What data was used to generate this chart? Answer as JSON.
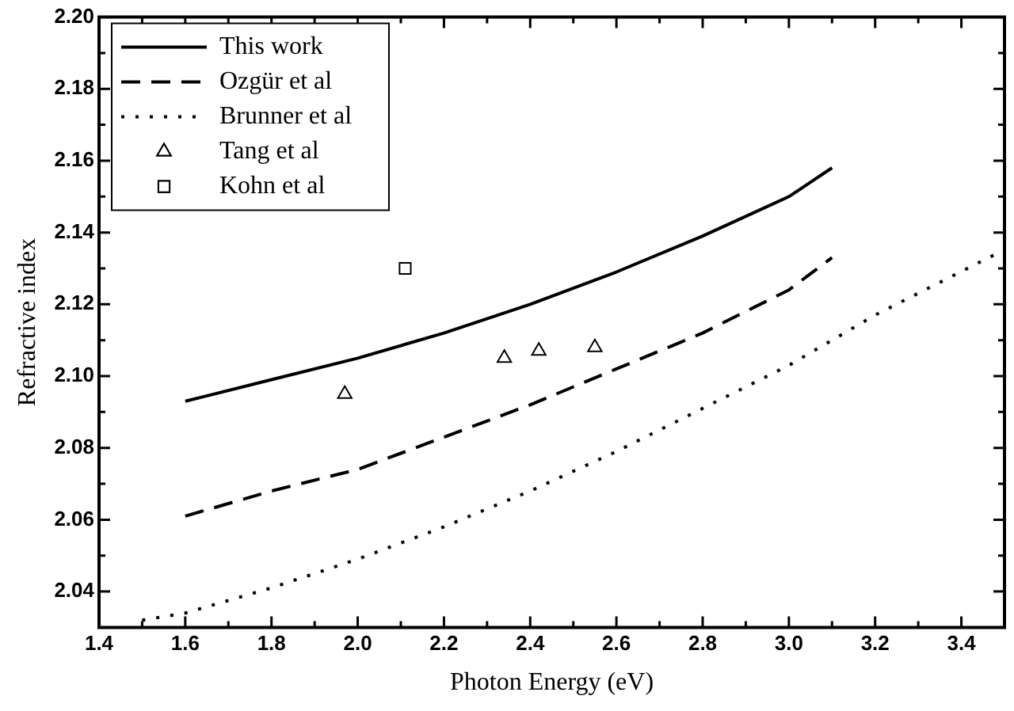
{
  "chart_data": {
    "type": "line",
    "xlabel": "Photon Energy (eV)",
    "ylabel": "Refractive index",
    "xlim": [
      1.4,
      3.5
    ],
    "ylim": [
      2.03,
      2.2
    ],
    "xticks": [
      1.4,
      {
        "value": 1.5,
        "label": null
      },
      1.6,
      {
        "value": 1.7,
        "label": null
      },
      1.8,
      {
        "value": 1.9,
        "label": null
      },
      {
        "value": 2.0,
        "label": "2.0"
      },
      {
        "value": 2.1,
        "label": null
      },
      2.2,
      {
        "value": 2.3,
        "label": null
      },
      2.4,
      {
        "value": 2.5,
        "label": null
      },
      2.6,
      {
        "value": 2.7,
        "label": null
      },
      2.8,
      {
        "value": 2.9,
        "label": null
      },
      {
        "value": 3.0,
        "label": "3.0"
      },
      {
        "value": 3.1,
        "label": null
      },
      3.2,
      {
        "value": 3.3,
        "label": null
      },
      3.4
    ],
    "yticks": [
      {
        "value": 2.03,
        "label": null
      },
      2.04,
      {
        "value": 2.05,
        "label": null
      },
      2.06,
      {
        "value": 2.07,
        "label": null
      },
      2.08,
      {
        "value": 2.09,
        "label": null
      },
      {
        "value": 2.1,
        "label": "2.10"
      },
      {
        "value": 2.11,
        "label": null
      },
      2.12,
      {
        "value": 2.13,
        "label": null
      },
      2.14,
      {
        "value": 2.15,
        "label": null
      },
      2.16,
      {
        "value": 2.17,
        "label": null
      },
      2.18,
      {
        "value": 2.19,
        "label": null
      },
      {
        "value": 2.2,
        "label": "2.20"
      }
    ],
    "legend": "top left",
    "series": [
      {
        "name": "This work",
        "line_style": "solid",
        "color": "#000000",
        "x": [
          1.6,
          1.8,
          2.0,
          2.2,
          2.4,
          2.6,
          2.8,
          3.0,
          3.1
        ],
        "values": [
          2.093,
          2.099,
          2.105,
          2.112,
          2.12,
          2.129,
          2.139,
          2.15,
          2.158
        ]
      },
      {
        "name": "Ozgür et al",
        "line_style": "dashed",
        "color": "#000000",
        "x": [
          1.6,
          1.8,
          2.0,
          2.2,
          2.4,
          2.6,
          2.8,
          3.0,
          3.1
        ],
        "values": [
          2.061,
          2.068,
          2.074,
          2.083,
          2.092,
          2.102,
          2.112,
          2.124,
          2.133
        ]
      },
      {
        "name": "Brunner et al",
        "line_style": "dotted",
        "color": "#000000",
        "x": [
          1.5,
          1.6,
          1.8,
          2.0,
          2.2,
          2.4,
          2.6,
          2.8,
          3.0,
          3.2,
          3.48
        ],
        "values": [
          2.032,
          2.034,
          2.041,
          2.049,
          2.058,
          2.068,
          2.079,
          2.091,
          2.103,
          2.117,
          2.134
        ]
      },
      {
        "name": "Tang et al",
        "type": "scatter",
        "marker": "triangle",
        "color": "#000000",
        "x": [
          1.97,
          2.34,
          2.42,
          2.55
        ],
        "values": [
          2.095,
          2.105,
          2.107,
          2.108
        ]
      },
      {
        "name": "Kohn et al",
        "type": "scatter",
        "marker": "square",
        "color": "#000000",
        "x": [
          2.11
        ],
        "values": [
          2.13
        ]
      }
    ]
  }
}
